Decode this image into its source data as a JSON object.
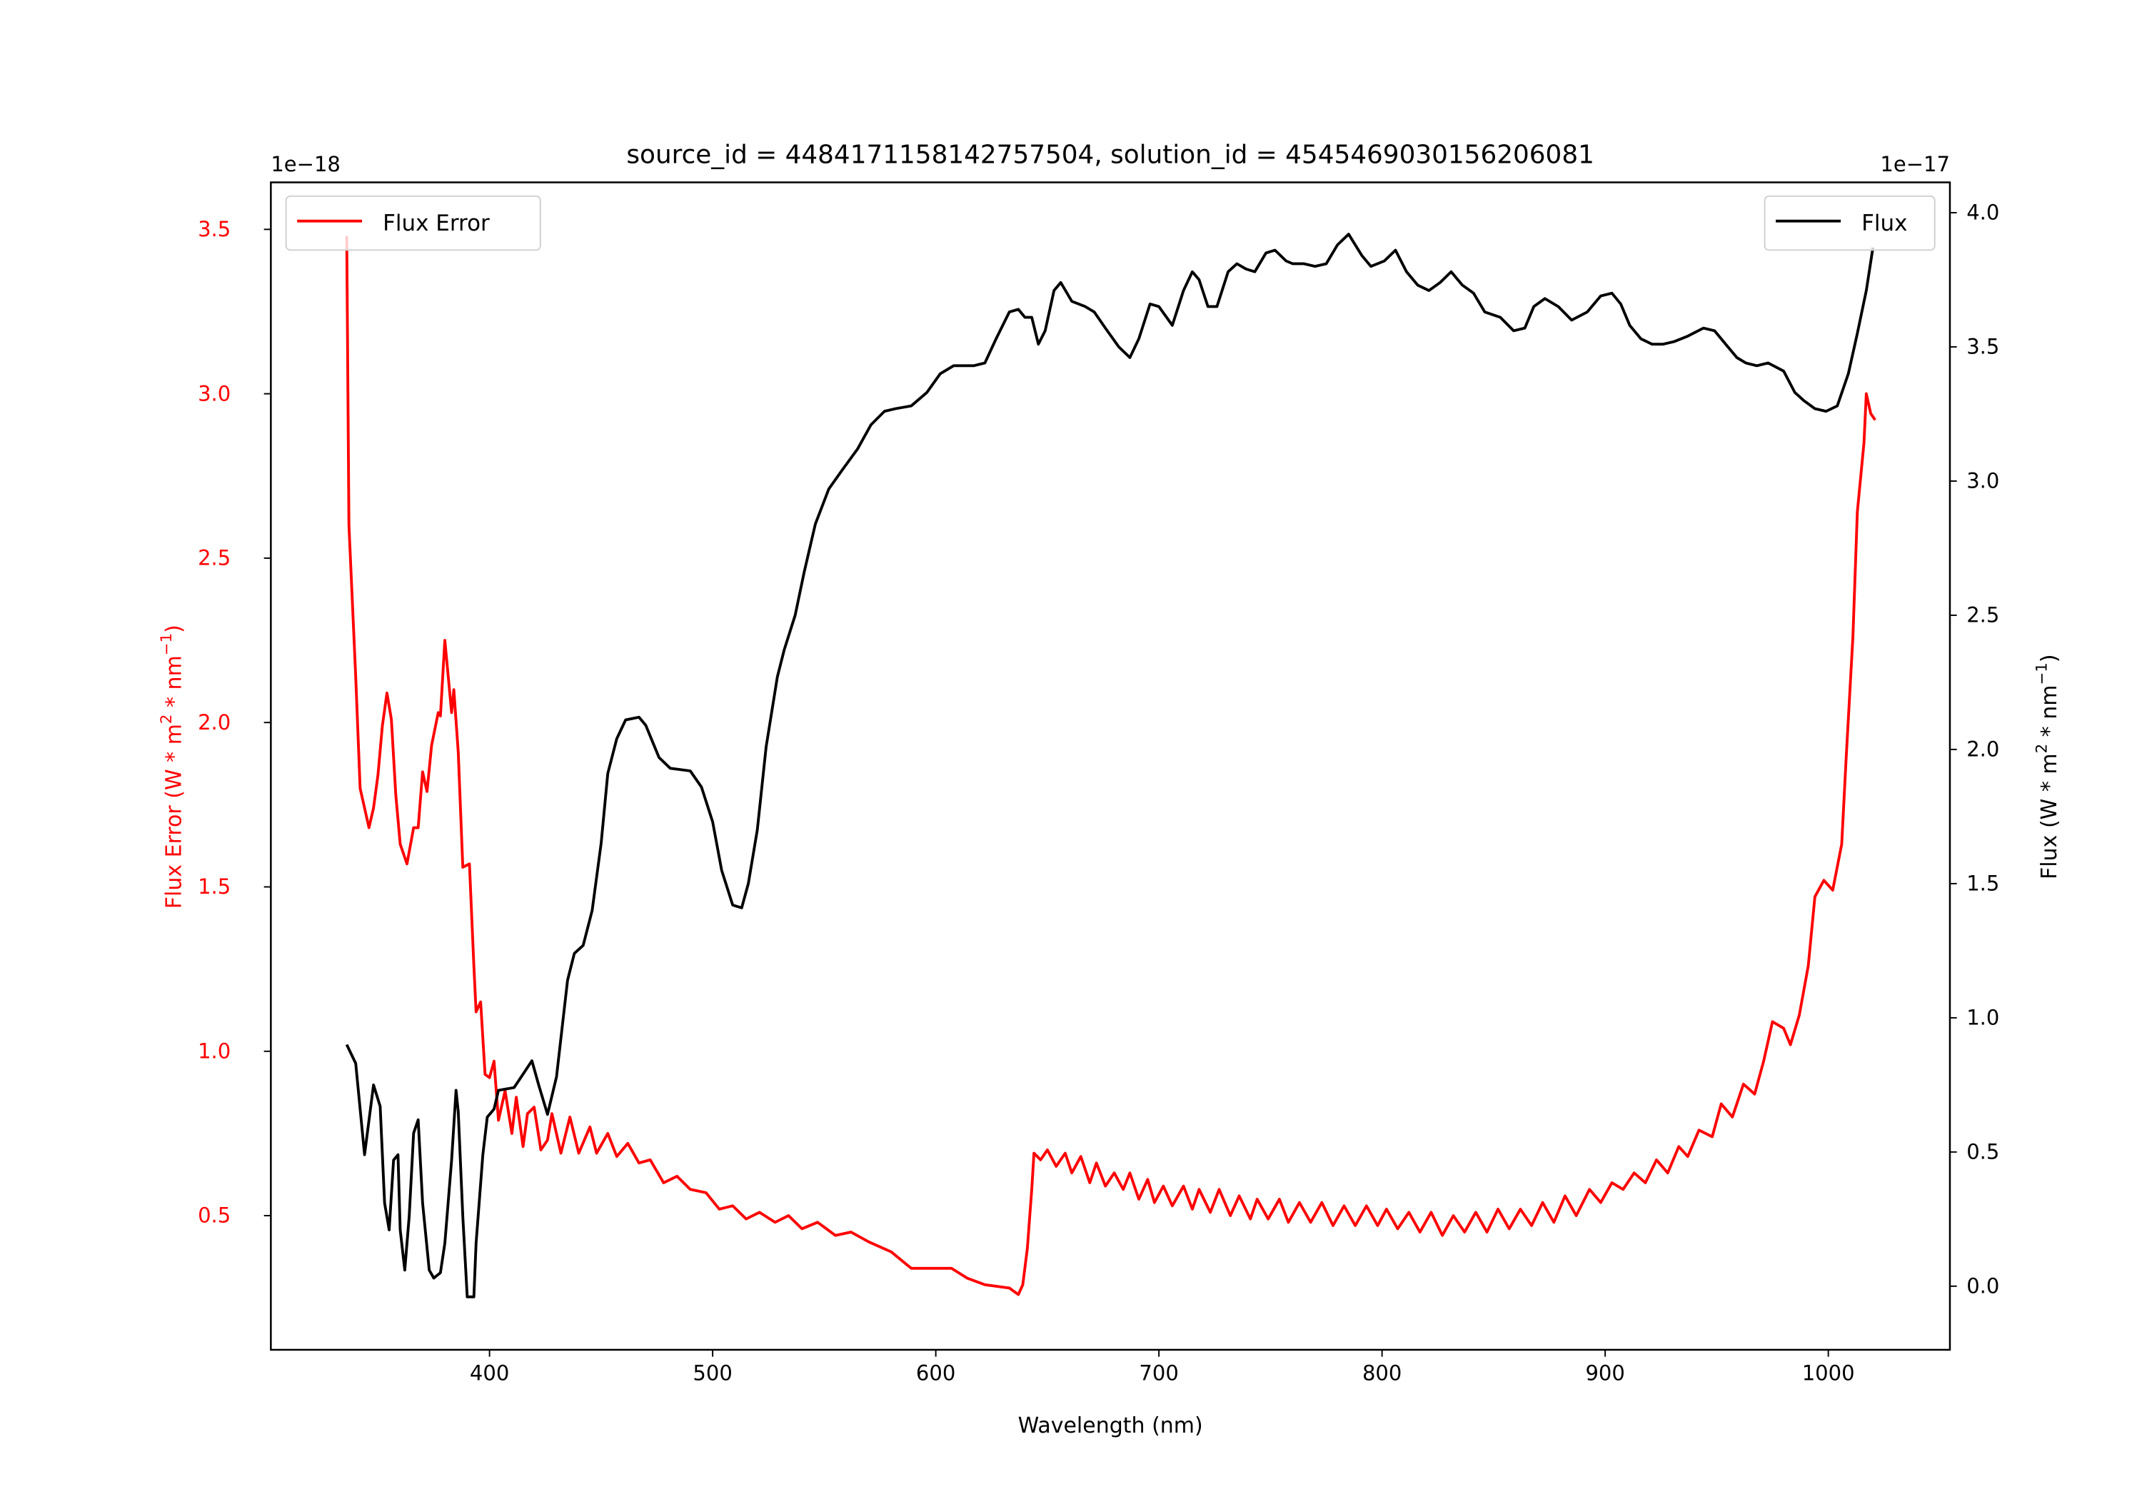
{
  "chart_data": {
    "type": "line",
    "title": "source_id = 4484171158142757504, solution_id = 4545469030156206081",
    "xlabel": "Wavelength (nm)",
    "ylabel_left": "Flux Error (W * m^2 * nm^-1)",
    "ylabel_right": "Flux (W * m^2 * nm^-1)",
    "ylabel_left_parts": [
      "Flux Error (W * m",
      "2",
      " * nm",
      "−1",
      ")"
    ],
    "ylabel_right_parts": [
      "Flux (W * m",
      "2",
      " * nm",
      "−1",
      ")"
    ],
    "offset_left": "1e−18",
    "offset_right": "1e−17",
    "xlim": [
      302,
      1054.5
    ],
    "ylim_left": [
      0.092,
      3.643
    ],
    "ylim_right": [
      -0.237,
      4.113
    ],
    "xticks": [
      400,
      500,
      600,
      700,
      800,
      900,
      1000
    ],
    "xtick_labels": [
      "400",
      "500",
      "600",
      "700",
      "800",
      "900",
      "1000"
    ],
    "yticks_left": [
      0.5,
      1.0,
      1.5,
      2.0,
      2.5,
      3.0,
      3.5
    ],
    "ytick_labels_left": [
      "0.5",
      "1.0",
      "1.5",
      "2.0",
      "2.5",
      "3.0",
      "3.5"
    ],
    "yticks_right": [
      0.0,
      0.5,
      1.0,
      1.5,
      2.0,
      2.5,
      3.0,
      3.5,
      4.0
    ],
    "ytick_labels_right": [
      "0.0",
      "0.5",
      "1.0",
      "1.5",
      "2.0",
      "2.5",
      "3.0",
      "3.5",
      "4.0"
    ],
    "grid": false,
    "legends": [
      {
        "label": "Flux Error",
        "color": "#ff0000",
        "placement": "upper-left"
      },
      {
        "label": "Flux",
        "color": "#000000",
        "placement": "upper-right"
      }
    ],
    "series": [
      {
        "name": "Flux Error",
        "axis": "left",
        "color": "#ff0000",
        "x": [
          336,
          337,
          340,
          342,
          344,
          346,
          348,
          350,
          352,
          354,
          356,
          358,
          360,
          363,
          366,
          368,
          370,
          372,
          374,
          377,
          378,
          380,
          383,
          384,
          386,
          388,
          391,
          393,
          394,
          396,
          398,
          400,
          402,
          404,
          407,
          410,
          412,
          415,
          417,
          420,
          423,
          426,
          428,
          432,
          436,
          440,
          445,
          448,
          453,
          457,
          462,
          467,
          472,
          478,
          484,
          490,
          497,
          503,
          509,
          515,
          521,
          528,
          534,
          540,
          547,
          555,
          562,
          570,
          580,
          589,
          597,
          607,
          614,
          622,
          633,
          637,
          639,
          641,
          643,
          644,
          647,
          650,
          654,
          658,
          661,
          665,
          669,
          672,
          676,
          680,
          684,
          687,
          691,
          695,
          698,
          702,
          706,
          711,
          715,
          718,
          723,
          727,
          732,
          736,
          741,
          744,
          749,
          754,
          758,
          763,
          768,
          773,
          778,
          783,
          788,
          793,
          798,
          802,
          807,
          812,
          817,
          822,
          827,
          832,
          837,
          842,
          847,
          852,
          857,
          862,
          867,
          872,
          877,
          882,
          887,
          893,
          898,
          903,
          908,
          913,
          918,
          923,
          928,
          933,
          937,
          942,
          948,
          952,
          957,
          962,
          967,
          971,
          975,
          980,
          983,
          987,
          991,
          994,
          998,
          1002,
          1006,
          1008,
          1011,
          1013,
          1016,
          1017,
          1019,
          1021
        ],
        "y": [
          3.48,
          2.6,
          2.14,
          1.8,
          1.74,
          1.68,
          1.74,
          1.84,
          1.99,
          2.09,
          2.01,
          1.78,
          1.63,
          1.57,
          1.68,
          1.68,
          1.85,
          1.79,
          1.93,
          2.03,
          2.02,
          2.25,
          2.03,
          2.1,
          1.91,
          1.56,
          1.57,
          1.26,
          1.12,
          1.15,
          0.93,
          0.92,
          0.97,
          0.79,
          0.88,
          0.75,
          0.86,
          0.71,
          0.81,
          0.83,
          0.7,
          0.73,
          0.81,
          0.69,
          0.8,
          0.69,
          0.77,
          0.69,
          0.75,
          0.68,
          0.72,
          0.66,
          0.67,
          0.6,
          0.62,
          0.58,
          0.57,
          0.52,
          0.53,
          0.49,
          0.51,
          0.48,
          0.5,
          0.46,
          0.48,
          0.44,
          0.45,
          0.42,
          0.39,
          0.34,
          0.34,
          0.34,
          0.31,
          0.29,
          0.28,
          0.26,
          0.29,
          0.4,
          0.58,
          0.69,
          0.67,
          0.7,
          0.65,
          0.69,
          0.63,
          0.68,
          0.6,
          0.66,
          0.59,
          0.63,
          0.58,
          0.63,
          0.55,
          0.61,
          0.54,
          0.59,
          0.53,
          0.59,
          0.52,
          0.58,
          0.51,
          0.58,
          0.5,
          0.56,
          0.49,
          0.55,
          0.49,
          0.55,
          0.48,
          0.54,
          0.48,
          0.54,
          0.47,
          0.53,
          0.47,
          0.53,
          0.47,
          0.52,
          0.46,
          0.51,
          0.45,
          0.51,
          0.44,
          0.5,
          0.45,
          0.51,
          0.45,
          0.52,
          0.46,
          0.52,
          0.47,
          0.54,
          0.48,
          0.56,
          0.5,
          0.58,
          0.54,
          0.6,
          0.58,
          0.63,
          0.6,
          0.67,
          0.63,
          0.71,
          0.68,
          0.76,
          0.74,
          0.84,
          0.8,
          0.9,
          0.87,
          0.97,
          1.09,
          1.07,
          1.02,
          1.11,
          1.26,
          1.47,
          1.52,
          1.49,
          1.63,
          1.89,
          2.26,
          2.64,
          2.85,
          3.0,
          2.94,
          2.92
        ]
      },
      {
        "name": "Flux",
        "axis": "right",
        "color": "#000000",
        "x": [
          336,
          340,
          344,
          348,
          351,
          353,
          355,
          357,
          359,
          360,
          362,
          364,
          366,
          368,
          370,
          373,
          375,
          378,
          380,
          383,
          385,
          386,
          388,
          390,
          393,
          394,
          397,
          399,
          402,
          404,
          411,
          415,
          419,
          422,
          426,
          430,
          435,
          438,
          442,
          446,
          450,
          453,
          457,
          461,
          467,
          470,
          476,
          481,
          490,
          495,
          500,
          504,
          509,
          513,
          516,
          520,
          524,
          529,
          532,
          537,
          541,
          546,
          552,
          558,
          565,
          571,
          577,
          582,
          589,
          596,
          602,
          608,
          617,
          622,
          627,
          633,
          637,
          640,
          643,
          646,
          649,
          653,
          656,
          661,
          667,
          671,
          676,
          682,
          687,
          691,
          696,
          700,
          706,
          711,
          715,
          718,
          722,
          726,
          731,
          735,
          739,
          743,
          748,
          752,
          757,
          760,
          765,
          770,
          775,
          780,
          785,
          791,
          795,
          801,
          806,
          811,
          816,
          821,
          826,
          831,
          836,
          841,
          846,
          853,
          859,
          864,
          868,
          873,
          879,
          885,
          892,
          898,
          903,
          907,
          911,
          916,
          921,
          926,
          931,
          937,
          944,
          949,
          954,
          959,
          963,
          968,
          973,
          980,
          985,
          989,
          994,
          999,
          1004,
          1009,
          1013,
          1017,
          1020
        ],
        "y": [
          0.9,
          0.83,
          0.49,
          0.75,
          0.67,
          0.31,
          0.21,
          0.47,
          0.49,
          0.21,
          0.06,
          0.26,
          0.57,
          0.62,
          0.31,
          0.06,
          0.03,
          0.05,
          0.16,
          0.47,
          0.73,
          0.65,
          0.26,
          -0.04,
          -0.04,
          0.16,
          0.49,
          0.63,
          0.66,
          0.73,
          0.74,
          0.79,
          0.84,
          0.75,
          0.64,
          0.78,
          1.14,
          1.24,
          1.27,
          1.4,
          1.65,
          1.91,
          2.04,
          2.11,
          2.12,
          2.09,
          1.97,
          1.93,
          1.92,
          1.86,
          1.73,
          1.55,
          1.42,
          1.41,
          1.5,
          1.7,
          2.01,
          2.27,
          2.37,
          2.5,
          2.66,
          2.84,
          2.97,
          3.04,
          3.12,
          3.21,
          3.26,
          3.27,
          3.28,
          3.33,
          3.4,
          3.43,
          3.43,
          3.44,
          3.53,
          3.63,
          3.64,
          3.61,
          3.61,
          3.51,
          3.56,
          3.71,
          3.74,
          3.67,
          3.65,
          3.63,
          3.57,
          3.5,
          3.46,
          3.53,
          3.66,
          3.65,
          3.58,
          3.71,
          3.78,
          3.75,
          3.65,
          3.65,
          3.78,
          3.81,
          3.79,
          3.78,
          3.85,
          3.86,
          3.82,
          3.81,
          3.81,
          3.8,
          3.81,
          3.88,
          3.92,
          3.84,
          3.8,
          3.82,
          3.86,
          3.78,
          3.73,
          3.71,
          3.74,
          3.78,
          3.73,
          3.7,
          3.63,
          3.61,
          3.56,
          3.57,
          3.65,
          3.68,
          3.65,
          3.6,
          3.63,
          3.69,
          3.7,
          3.66,
          3.58,
          3.53,
          3.51,
          3.51,
          3.52,
          3.54,
          3.57,
          3.56,
          3.51,
          3.46,
          3.44,
          3.43,
          3.44,
          3.41,
          3.33,
          3.3,
          3.27,
          3.26,
          3.28,
          3.4,
          3.55,
          3.71,
          3.87
        ]
      }
    ]
  }
}
